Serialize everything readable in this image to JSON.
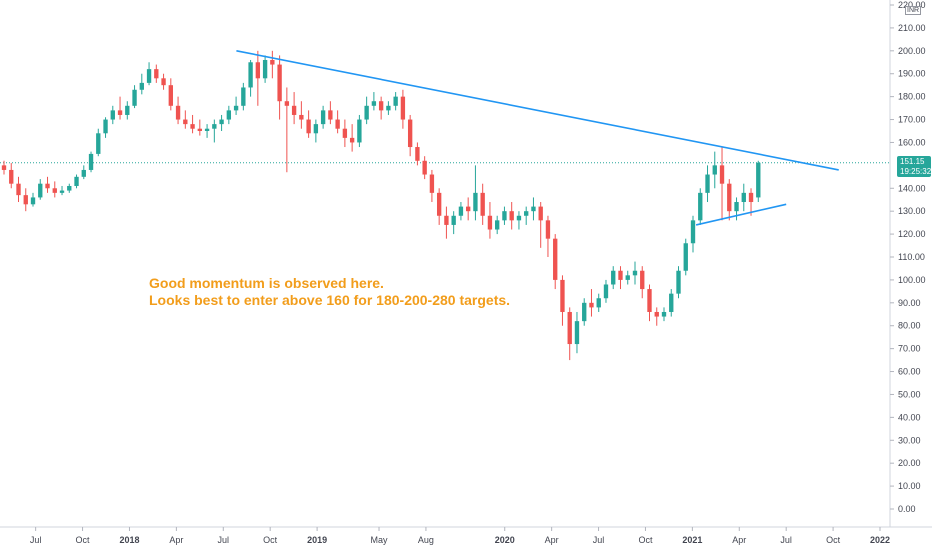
{
  "currency": "INR",
  "price_badge": {
    "price": "151.15",
    "countdown": "19:25:32",
    "color": "#26a69a"
  },
  "annotation": {
    "line1": "Good momentum is observed here.",
    "line2": "Looks best to enter above 160 for 180-200-280 targets.",
    "color": "#f29d1b"
  },
  "colors": {
    "up": "#26a69a",
    "down": "#ef5350",
    "trendline": "#2196f3"
  },
  "chart_data": {
    "type": "candlestick",
    "ylim": [
      0,
      220
    ],
    "y_ticks": [
      {
        "v": 0,
        "label": "0.00"
      },
      {
        "v": 10,
        "label": "10.00"
      },
      {
        "v": 20,
        "label": "20.00"
      },
      {
        "v": 30,
        "label": "30.00"
      },
      {
        "v": 40,
        "label": "40.00"
      },
      {
        "v": 50,
        "label": "50.00"
      },
      {
        "v": 60,
        "label": "60.00"
      },
      {
        "v": 70,
        "label": "70.00"
      },
      {
        "v": 80,
        "label": "80.00"
      },
      {
        "v": 90,
        "label": "90.00"
      },
      {
        "v": 100,
        "label": "100.00"
      },
      {
        "v": 110,
        "label": "110.00"
      },
      {
        "v": 120,
        "label": "120.00"
      },
      {
        "v": 130,
        "label": "130.00"
      },
      {
        "v": 140,
        "label": "140.00"
      },
      {
        "v": 160,
        "label": "160.00"
      },
      {
        "v": 170,
        "label": "170.00"
      },
      {
        "v": 180,
        "label": "180.00"
      },
      {
        "v": 190,
        "label": "190.00"
      },
      {
        "v": 200,
        "label": "200.00"
      },
      {
        "v": 210,
        "label": "210.00"
      },
      {
        "v": 220,
        "label": "220.00"
      }
    ],
    "x_ticks": [
      {
        "t": 2017.5,
        "label": "Jul",
        "bold": false
      },
      {
        "t": 2017.75,
        "label": "Oct",
        "bold": false
      },
      {
        "t": 2018.0,
        "label": "2018",
        "bold": true
      },
      {
        "t": 2018.25,
        "label": "Apr",
        "bold": false
      },
      {
        "t": 2018.5,
        "label": "Jul",
        "bold": false
      },
      {
        "t": 2018.75,
        "label": "Oct",
        "bold": false
      },
      {
        "t": 2019.0,
        "label": "2019",
        "bold": true
      },
      {
        "t": 2019.33,
        "label": "May",
        "bold": false
      },
      {
        "t": 2019.58,
        "label": "Aug",
        "bold": false
      },
      {
        "t": 2020.0,
        "label": "2020",
        "bold": true
      },
      {
        "t": 2020.25,
        "label": "Apr",
        "bold": false
      },
      {
        "t": 2020.5,
        "label": "Jul",
        "bold": false
      },
      {
        "t": 2020.75,
        "label": "Oct",
        "bold": false
      },
      {
        "t": 2021.0,
        "label": "2021",
        "bold": true
      },
      {
        "t": 2021.25,
        "label": "Apr",
        "bold": false
      },
      {
        "t": 2021.5,
        "label": "Jul",
        "bold": false
      },
      {
        "t": 2021.75,
        "label": "Oct",
        "bold": false
      },
      {
        "t": 2022.0,
        "label": "2022",
        "bold": true
      }
    ],
    "xlim": [
      2017.31,
      2022.0
    ],
    "last_price": 151.15,
    "candles": [
      [
        150,
        152,
        148,
        146
      ],
      [
        148,
        151,
        142,
        140
      ],
      [
        142,
        145,
        137,
        134
      ],
      [
        137,
        140,
        133,
        130
      ],
      [
        133,
        138,
        136,
        132
      ],
      [
        136,
        144,
        142,
        135
      ],
      [
        142,
        145,
        140,
        138
      ],
      [
        140,
        143,
        138,
        136
      ],
      [
        138,
        141,
        139,
        137
      ],
      [
        139,
        142,
        141,
        138
      ],
      [
        141,
        146,
        145,
        140
      ],
      [
        145,
        150,
        148,
        144
      ],
      [
        148,
        156,
        155,
        147
      ],
      [
        155,
        166,
        164,
        154
      ],
      [
        164,
        171,
        170,
        162
      ],
      [
        170,
        176,
        174,
        168
      ],
      [
        174,
        180,
        172,
        170
      ],
      [
        172,
        178,
        176,
        170
      ],
      [
        176,
        185,
        183,
        175
      ],
      [
        183,
        190,
        186,
        181
      ],
      [
        186,
        195,
        192,
        185
      ],
      [
        192,
        194,
        188,
        186
      ],
      [
        188,
        190,
        185,
        183
      ],
      [
        185,
        188,
        176,
        174
      ],
      [
        176,
        180,
        170,
        168
      ],
      [
        170,
        174,
        168,
        166
      ],
      [
        168,
        172,
        166,
        164
      ],
      [
        166,
        170,
        165,
        163
      ],
      [
        165,
        168,
        166,
        162
      ],
      [
        166,
        170,
        168,
        160
      ],
      [
        168,
        172,
        170,
        165
      ],
      [
        170,
        176,
        174,
        168
      ],
      [
        174,
        180,
        176,
        172
      ],
      [
        176,
        186,
        184,
        174
      ],
      [
        184,
        196,
        195,
        180
      ],
      [
        195,
        200,
        188,
        176
      ],
      [
        188,
        198,
        196,
        186
      ],
      [
        196,
        200,
        194,
        188
      ],
      [
        194,
        198,
        178,
        170
      ],
      [
        178,
        184,
        176,
        147
      ],
      [
        176,
        182,
        172,
        168
      ],
      [
        172,
        178,
        170,
        166
      ],
      [
        170,
        174,
        164,
        162
      ],
      [
        164,
        170,
        168,
        160
      ],
      [
        168,
        176,
        174,
        166
      ],
      [
        174,
        178,
        170,
        168
      ],
      [
        170,
        174,
        166,
        164
      ],
      [
        166,
        170,
        162,
        158
      ],
      [
        162,
        168,
        160,
        156
      ],
      [
        160,
        172,
        170,
        158
      ],
      [
        170,
        180,
        176,
        168
      ],
      [
        176,
        182,
        178,
        174
      ],
      [
        178,
        180,
        174,
        170
      ],
      [
        174,
        178,
        176,
        172
      ],
      [
        176,
        182,
        180,
        174
      ],
      [
        180,
        183,
        170,
        166
      ],
      [
        170,
        172,
        158,
        154
      ],
      [
        158,
        160,
        152,
        150
      ],
      [
        152,
        154,
        146,
        144
      ],
      [
        146,
        148,
        138,
        134
      ],
      [
        138,
        140,
        128,
        124
      ],
      [
        128,
        132,
        124,
        118
      ],
      [
        124,
        130,
        128,
        120
      ],
      [
        128,
        134,
        132,
        126
      ],
      [
        132,
        136,
        130,
        126
      ],
      [
        130,
        150,
        138,
        126
      ],
      [
        138,
        142,
        128,
        124
      ],
      [
        128,
        134,
        122,
        118
      ],
      [
        122,
        128,
        126,
        120
      ],
      [
        126,
        132,
        130,
        124
      ],
      [
        130,
        134,
        126,
        122
      ],
      [
        126,
        130,
        128,
        122
      ],
      [
        128,
        132,
        130,
        124
      ],
      [
        130,
        136,
        132,
        126
      ],
      [
        132,
        134,
        126,
        114
      ],
      [
        126,
        128,
        118,
        110
      ],
      [
        118,
        120,
        100,
        96
      ],
      [
        100,
        102,
        86,
        80
      ],
      [
        86,
        88,
        72,
        65
      ],
      [
        72,
        86,
        82,
        68
      ],
      [
        82,
        92,
        90,
        80
      ],
      [
        90,
        96,
        88,
        84
      ],
      [
        88,
        94,
        92,
        86
      ],
      [
        92,
        100,
        98,
        90
      ],
      [
        98,
        106,
        104,
        96
      ],
      [
        104,
        106,
        100,
        96
      ],
      [
        100,
        104,
        102,
        98
      ],
      [
        102,
        108,
        104,
        98
      ],
      [
        104,
        106,
        96,
        92
      ],
      [
        96,
        98,
        86,
        82
      ],
      [
        86,
        88,
        84,
        80
      ],
      [
        84,
        88,
        86,
        82
      ],
      [
        86,
        96,
        94,
        84
      ],
      [
        94,
        106,
        104,
        92
      ],
      [
        104,
        118,
        116,
        102
      ],
      [
        116,
        128,
        126,
        112
      ],
      [
        126,
        140,
        138,
        124
      ],
      [
        138,
        150,
        146,
        134
      ],
      [
        146,
        156,
        150,
        140
      ],
      [
        150,
        158,
        142,
        126
      ],
      [
        142,
        144,
        130,
        126
      ],
      [
        130,
        136,
        134,
        126
      ],
      [
        134,
        142,
        138,
        130
      ],
      [
        138,
        140,
        134,
        128
      ],
      [
        136,
        152,
        151.15,
        134
      ]
    ],
    "candle_range": [
      2017.31,
      2021.33
    ],
    "trendlines": [
      {
        "x1": 2018.57,
        "y1": 200,
        "x2": 2021.78,
        "y2": 148
      },
      {
        "x1": 2021.02,
        "y1": 124,
        "x2": 2021.5,
        "y2": 133
      }
    ]
  }
}
